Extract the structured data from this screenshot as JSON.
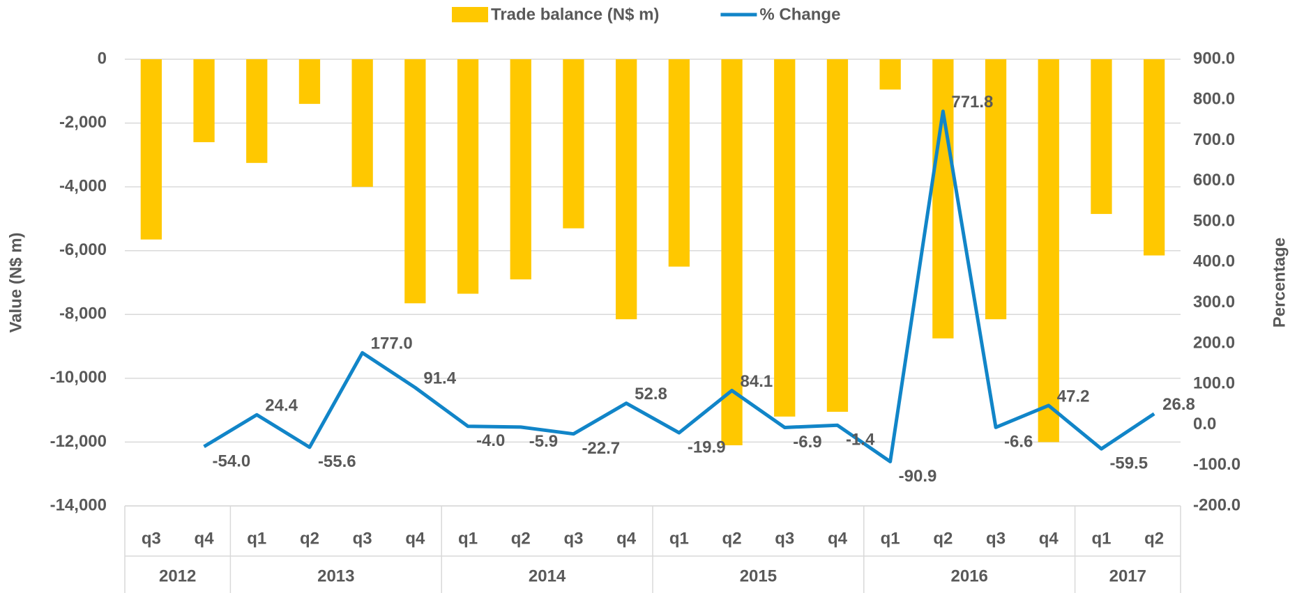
{
  "chart_data": {
    "type": "bar_line",
    "legend": "top",
    "categories": [
      "q3",
      "q4",
      "q1",
      "q2",
      "q3",
      "q4",
      "q1",
      "q2",
      "q3",
      "q4",
      "q1",
      "q2",
      "q3",
      "q4",
      "q1",
      "q2",
      "q3",
      "q4",
      "q1",
      "q2"
    ],
    "groups": [
      {
        "label": "2012",
        "span": 2
      },
      {
        "label": "2013",
        "span": 4
      },
      {
        "label": "2014",
        "span": 4
      },
      {
        "label": "2015",
        "span": 4
      },
      {
        "label": "2016",
        "span": 4
      },
      {
        "label": "2017",
        "span": 2
      }
    ],
    "series": [
      {
        "name": "Trade balance (N$ m)",
        "type": "bar",
        "color": "#FFC800",
        "values": [
          -5650,
          -2600,
          -3250,
          -1400,
          -4000,
          -7650,
          -7350,
          -6900,
          -5300,
          -8150,
          -6500,
          -12100,
          -11200,
          -11050,
          -950,
          -8750,
          -8150,
          -12000,
          -4850,
          -6150
        ]
      },
      {
        "name": "% Change",
        "type": "line",
        "axis": "y2",
        "color": "#1185C8",
        "values": [
          null,
          -54.0,
          24.4,
          -55.6,
          177.0,
          91.4,
          -4.0,
          -5.9,
          -22.7,
          52.8,
          -19.9,
          84.1,
          -6.9,
          -1.4,
          -90.9,
          771.8,
          -6.6,
          47.2,
          -59.5,
          26.8
        ],
        "value_labels": [
          null,
          "-54.0",
          "24.4",
          "-55.6",
          "177.0",
          "91.4",
          "-4.0",
          "-5.9",
          "-22.7",
          "52.8",
          "-19.9",
          "84.1",
          "-6.9",
          "-1.4",
          "-90.9",
          "771.8",
          "-6.6",
          "47.2",
          "-59.5",
          "26.8"
        ]
      }
    ],
    "ylabel": "Value (N$ m)",
    "y2label": "Percentage",
    "ylim": [
      -14000,
      0
    ],
    "yticks": [
      0,
      {
        "value": -2000,
        "label": "-2,000"
      },
      {
        "value": -4000,
        "label": "-4,000"
      },
      {
        "value": -6000,
        "label": "-6,000"
      },
      {
        "value": -8000,
        "label": "-8,000"
      },
      {
        "value": -10000,
        "label": "-10,000"
      },
      {
        "value": -12000,
        "label": "-12,000"
      },
      {
        "value": -14000,
        "label": "-14,000"
      }
    ],
    "y2lim": [
      -200,
      900
    ],
    "y2ticks": [
      {
        "value": 900,
        "label": "900.0"
      },
      {
        "value": 800,
        "label": "800.0"
      },
      {
        "value": 700,
        "label": "700.0"
      },
      {
        "value": 600,
        "label": "600.0"
      },
      {
        "value": 500,
        "label": "500.0"
      },
      {
        "value": 400,
        "label": "400.0"
      },
      {
        "value": 300,
        "label": "300.0"
      },
      {
        "value": 200,
        "label": "200.0"
      },
      {
        "value": 100,
        "label": "100.0"
      },
      {
        "value": 0,
        "label": "0.0"
      },
      {
        "value": -100,
        "label": "-100.0"
      },
      {
        "value": -200,
        "label": "-200.0"
      }
    ],
    "grid": true
  }
}
